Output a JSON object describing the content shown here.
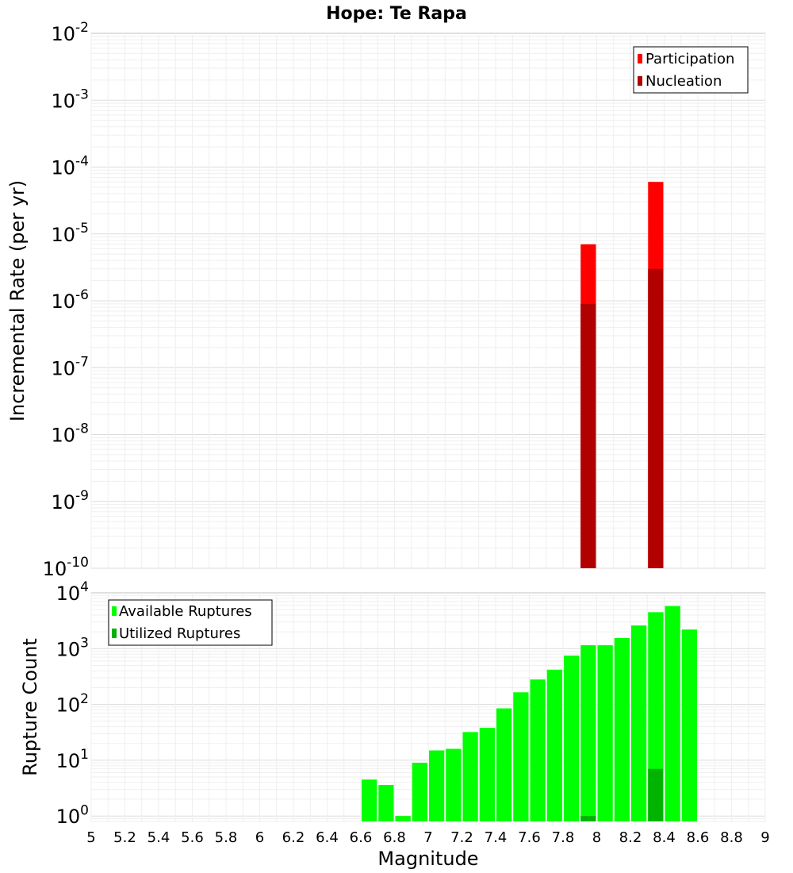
{
  "title": "Hope: Te Rapa",
  "chart_data": [
    {
      "type": "bar",
      "yscale": "log",
      "ylabel": "Incremental Rate (per yr)",
      "xlim": [
        5,
        9
      ],
      "ylim": [
        1e-10,
        0.01
      ],
      "y_tick_exponents": [
        -2,
        -3,
        -4,
        -5,
        -6,
        -7,
        -8,
        -9,
        -10
      ],
      "legend_position": "top-right",
      "bar_width": 0.1,
      "series": [
        {
          "name": "Participation",
          "color": "#ff0000",
          "x": [
            7.95,
            8.35
          ],
          "values": [
            7e-06,
            6e-05
          ]
        },
        {
          "name": "Nucleation",
          "color": "#b00000",
          "x": [
            7.95,
            8.35
          ],
          "values": [
            9e-07,
            3e-06
          ]
        }
      ]
    },
    {
      "type": "bar",
      "yscale": "log",
      "xlabel": "Magnitude",
      "ylabel": "Rupture Count",
      "xlim": [
        5,
        9
      ],
      "ylim": [
        0.8,
        10000
      ],
      "y_tick_exponents": [
        4,
        3,
        2,
        1,
        0
      ],
      "x_ticks": [
        "5",
        "5.2",
        "5.4",
        "5.6",
        "5.8",
        "6",
        "6.2",
        "6.4",
        "6.6",
        "6.8",
        "7",
        "7.2",
        "7.4",
        "7.6",
        "7.8",
        "8",
        "8.2",
        "8.4",
        "8.6",
        "8.8",
        "9"
      ],
      "legend_position": "top-left",
      "bar_width": 0.1,
      "series": [
        {
          "name": "Available Ruptures",
          "color": "#00ff00",
          "x": [
            6.65,
            6.75,
            6.85,
            6.95,
            7.05,
            7.15,
            7.25,
            7.35,
            7.45,
            7.55,
            7.65,
            7.75,
            7.85,
            7.95,
            8.05,
            8.15,
            8.25,
            8.35,
            8.45,
            8.55
          ],
          "values": [
            4.5,
            3.6,
            1,
            9,
            15,
            16,
            32,
            38,
            85,
            165,
            280,
            420,
            750,
            1150,
            1150,
            1550,
            2600,
            4500,
            5800,
            2200
          ]
        },
        {
          "name": "Utilized Ruptures",
          "color": "#00b300",
          "x": [
            7.95,
            8.35
          ],
          "values": [
            1,
            7
          ]
        }
      ]
    }
  ]
}
